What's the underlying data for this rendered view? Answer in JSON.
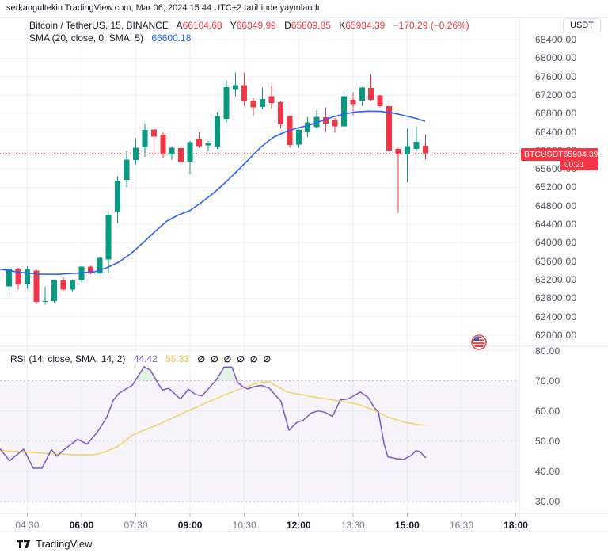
{
  "attribution": "serkangultekin TradingView.com, Mar 06, 2024 15:44 UTC+2 tarihinde yayınlandı",
  "header": {
    "symbol_title": "Bitcoin / TetherUS, 15, BINANCE",
    "ohlc": [
      {
        "label": "A",
        "value": "66104.68"
      },
      {
        "label": "Y",
        "value": "66349.99"
      },
      {
        "label": "D",
        "value": "65809.85"
      },
      {
        "label": "K",
        "value": "65934.39"
      }
    ],
    "change": "−170.29 (−0.26%)",
    "sma_label": "SMA (20, close, 0, SMA, 5)",
    "sma_value": "66600.18"
  },
  "rsi_legend": {
    "label": "RSI (14, close, SMA, 14, 2)",
    "value_rsi": "44.42",
    "value_ma": "55.33",
    "empty_values": [
      "∅",
      "∅",
      "∅",
      "∅",
      "∅",
      "∅"
    ]
  },
  "price_axis": {
    "currency_button": "USDT"
  },
  "price_badge": {
    "symbol": "BTCUSDT",
    "price": "65934.39",
    "countdown": "00:21"
  },
  "footer": {
    "brand": "TradingView"
  },
  "colors": {
    "up": "#089981",
    "down": "#f23645",
    "sma": "#2962ff",
    "rsi": "#7e57c2",
    "rsi_ma": "#f2d35e",
    "grid": "#f0f3fa",
    "border": "#e0e3eb",
    "axis_text": "#50535e",
    "band": "rgba(126,87,194,0.07)",
    "overbought_fill": "rgba(76,175,80,0.16)"
  },
  "chart_data": {
    "type": "candlestick",
    "symbol": "BTCUSDT",
    "interval_minutes": 15,
    "x_start": 11.5,
    "x_step": 11.43,
    "price_ylim": [
      61760,
      68880
    ],
    "price_ticks": [
      68400,
      68000,
      67600,
      67200,
      66800,
      66400,
      66000,
      65600,
      65200,
      64800,
      64400,
      64000,
      63600,
      63200,
      62800,
      62400,
      62000
    ],
    "price_line": 65934.39,
    "time_ticks": [
      {
        "label": "04:30",
        "i": 2,
        "bold": false
      },
      {
        "label": "06:00",
        "i": 8,
        "bold": true
      },
      {
        "label": "07:30",
        "i": 14,
        "bold": false
      },
      {
        "label": "09:00",
        "i": 20,
        "bold": true
      },
      {
        "label": "10:30",
        "i": 26,
        "bold": false
      },
      {
        "label": "12:00",
        "i": 32,
        "bold": true
      },
      {
        "label": "13:30",
        "i": 38,
        "bold": false
      },
      {
        "label": "15:00",
        "i": 44,
        "bold": true
      },
      {
        "label": "16:30",
        "i": 50,
        "bold": false
      },
      {
        "label": "18:00",
        "i": 56,
        "bold": true
      }
    ],
    "candles": [
      [
        "04:00",
        63060,
        63440,
        62890,
        63430
      ],
      [
        "04:15",
        63430,
        63460,
        62990,
        63100
      ],
      [
        "04:30",
        63100,
        63490,
        63000,
        63430
      ],
      [
        "04:45",
        63400,
        63420,
        62670,
        62720
      ],
      [
        "05:00",
        62720,
        63050,
        62660,
        62740
      ],
      [
        "05:15",
        62740,
        63200,
        62700,
        63180
      ],
      [
        "05:30",
        63180,
        63260,
        62960,
        62990
      ],
      [
        "05:45",
        62990,
        63190,
        62950,
        63180
      ],
      [
        "06:00",
        63180,
        63490,
        63150,
        63480
      ],
      [
        "06:15",
        63480,
        63500,
        63320,
        63340
      ],
      [
        "06:30",
        63340,
        63690,
        63320,
        63670
      ],
      [
        "06:45",
        63640,
        64650,
        63340,
        64610
      ],
      [
        "07:00",
        64680,
        65440,
        64430,
        65350
      ],
      [
        "07:15",
        65360,
        66000,
        65200,
        65800
      ],
      [
        "07:30",
        65790,
        66260,
        65700,
        66060
      ],
      [
        "07:45",
        66070,
        66580,
        65860,
        66440
      ],
      [
        "08:00",
        66450,
        66470,
        65880,
        66300
      ],
      [
        "08:15",
        66340,
        66390,
        65840,
        65910
      ],
      [
        "08:30",
        65910,
        66090,
        65790,
        66060
      ],
      [
        "08:45",
        66050,
        66080,
        65720,
        65750
      ],
      [
        "09:00",
        65760,
        66200,
        65480,
        66180
      ],
      [
        "09:15",
        66250,
        66390,
        66060,
        66090
      ],
      [
        "09:30",
        66110,
        66200,
        65990,
        66170
      ],
      [
        "09:45",
        66080,
        66840,
        66030,
        66740
      ],
      [
        "10:00",
        66680,
        67520,
        66610,
        67370
      ],
      [
        "10:15",
        67330,
        67690,
        67170,
        67410
      ],
      [
        "10:30",
        67410,
        67690,
        66970,
        67060
      ],
      [
        "10:45",
        67080,
        67130,
        66740,
        66930
      ],
      [
        "11:00",
        66940,
        67360,
        66900,
        67110
      ],
      [
        "11:15",
        67170,
        67400,
        66910,
        67030
      ],
      [
        "11:30",
        67040,
        67060,
        66470,
        66560
      ],
      [
        "11:45",
        66740,
        66760,
        66060,
        66120
      ],
      [
        "12:00",
        66130,
        66460,
        66060,
        66440
      ],
      [
        "12:15",
        66410,
        66730,
        66290,
        66610
      ],
      [
        "12:30",
        66500,
        66870,
        66470,
        66730
      ],
      [
        "12:45",
        66720,
        66930,
        66400,
        66580
      ],
      [
        "13:00",
        66660,
        66700,
        66380,
        66520
      ],
      [
        "13:15",
        66520,
        67280,
        66480,
        67170
      ],
      [
        "13:30",
        67100,
        67260,
        66750,
        67000
      ],
      [
        "13:45",
        67080,
        67370,
        66960,
        67360
      ],
      [
        "14:00",
        67350,
        67660,
        67060,
        67100
      ],
      [
        "14:15",
        67190,
        67200,
        66940,
        66960
      ],
      [
        "14:30",
        66960,
        67020,
        65950,
        66000
      ],
      [
        "14:45",
        66030,
        66050,
        64650,
        65910
      ],
      [
        "15:00",
        65910,
        66470,
        65300,
        66090
      ],
      [
        "15:15",
        66030,
        66520,
        66000,
        66190
      ],
      [
        "15:30",
        66104.68,
        66349.99,
        65809.85,
        65934.39
      ]
    ],
    "sma": {
      "value": 66600.18,
      "points": [
        [
          0,
          63430
        ],
        [
          25,
          63360
        ],
        [
          50,
          63320
        ],
        [
          75,
          63320
        ],
        [
          100,
          63345
        ],
        [
          120,
          63375
        ],
        [
          135,
          63460
        ],
        [
          150,
          63580
        ],
        [
          165,
          63760
        ],
        [
          180,
          63990
        ],
        [
          195,
          64230
        ],
        [
          210,
          64460
        ],
        [
          225,
          64600
        ],
        [
          240,
          64700
        ],
        [
          255,
          64880
        ],
        [
          270,
          65080
        ],
        [
          285,
          65310
        ],
        [
          300,
          65560
        ],
        [
          315,
          65820
        ],
        [
          330,
          66080
        ],
        [
          345,
          66280
        ],
        [
          360,
          66400
        ],
        [
          375,
          66480
        ],
        [
          390,
          66545
        ],
        [
          405,
          66630
        ],
        [
          420,
          66720
        ],
        [
          435,
          66790
        ],
        [
          450,
          66835
        ],
        [
          465,
          66850
        ],
        [
          480,
          66845
        ],
        [
          495,
          66815
        ],
        [
          510,
          66760
        ],
        [
          525,
          66695
        ],
        [
          537,
          66630
        ]
      ]
    },
    "rsi_pane": {
      "type": "line",
      "ylim": [
        26,
        81.5
      ],
      "ticks": [
        80,
        70,
        60,
        50,
        40,
        30
      ],
      "band": [
        30,
        70
      ],
      "rsi_value": 44.42,
      "ma_value": 55.33,
      "rsi_points": [
        [
          0,
          47.5
        ],
        [
          12,
          43.5
        ],
        [
          30,
          47.3
        ],
        [
          42,
          41
        ],
        [
          53,
          41
        ],
        [
          65,
          47.2
        ],
        [
          72,
          45
        ],
        [
          80,
          47
        ],
        [
          98,
          50.6
        ],
        [
          110,
          49
        ],
        [
          123,
          53
        ],
        [
          135,
          58
        ],
        [
          143,
          63.5
        ],
        [
          150,
          65.8
        ],
        [
          157,
          67
        ],
        [
          167,
          68.5
        ],
        [
          182,
          74.7
        ],
        [
          190,
          73.5
        ],
        [
          200,
          69
        ],
        [
          205,
          67
        ],
        [
          213,
          67.5
        ],
        [
          228,
          64
        ],
        [
          238,
          67.2
        ],
        [
          247,
          65.5
        ],
        [
          255,
          65
        ],
        [
          273,
          70.2
        ],
        [
          283,
          74.6
        ],
        [
          293,
          74.6
        ],
        [
          300,
          69.5
        ],
        [
          307,
          68
        ],
        [
          313,
          67.3
        ],
        [
          320,
          68
        ],
        [
          330,
          68.5
        ],
        [
          340,
          67.6
        ],
        [
          355,
          63.2
        ],
        [
          365,
          53.6
        ],
        [
          375,
          56.2
        ],
        [
          383,
          56.9
        ],
        [
          393,
          59.3
        ],
        [
          402,
          60
        ],
        [
          410,
          59.6
        ],
        [
          420,
          58.2
        ],
        [
          430,
          63.7
        ],
        [
          440,
          64
        ],
        [
          455,
          66.3
        ],
        [
          465,
          64.5
        ],
        [
          473,
          61
        ],
        [
          478,
          59.7
        ],
        [
          485,
          49.2
        ],
        [
          490,
          44.8
        ],
        [
          500,
          44.2
        ],
        [
          510,
          43.9
        ],
        [
          520,
          45.3
        ],
        [
          525,
          46.8
        ],
        [
          530,
          46.6
        ],
        [
          538,
          44.42
        ]
      ],
      "ma_points": [
        [
          0,
          47
        ],
        [
          33,
          46.3
        ],
        [
          67,
          45.8
        ],
        [
          100,
          45.4
        ],
        [
          120,
          45.5
        ],
        [
          133,
          46.4
        ],
        [
          150,
          48.4
        ],
        [
          167,
          52
        ],
        [
          200,
          55.5
        ],
        [
          233,
          59.5
        ],
        [
          267,
          63.5
        ],
        [
          300,
          67
        ],
        [
          330,
          69.6
        ],
        [
          340,
          69.7
        ],
        [
          363,
          66.3
        ],
        [
          397,
          64.6
        ],
        [
          430,
          63.3
        ],
        [
          450,
          62.4
        ],
        [
          470,
          60.5
        ],
        [
          490,
          58
        ],
        [
          510,
          56.3
        ],
        [
          530,
          55.4
        ],
        [
          538,
          55.33
        ]
      ]
    },
    "event_marker": {
      "x": 605,
      "y": 432,
      "icon": "us-flag"
    }
  }
}
